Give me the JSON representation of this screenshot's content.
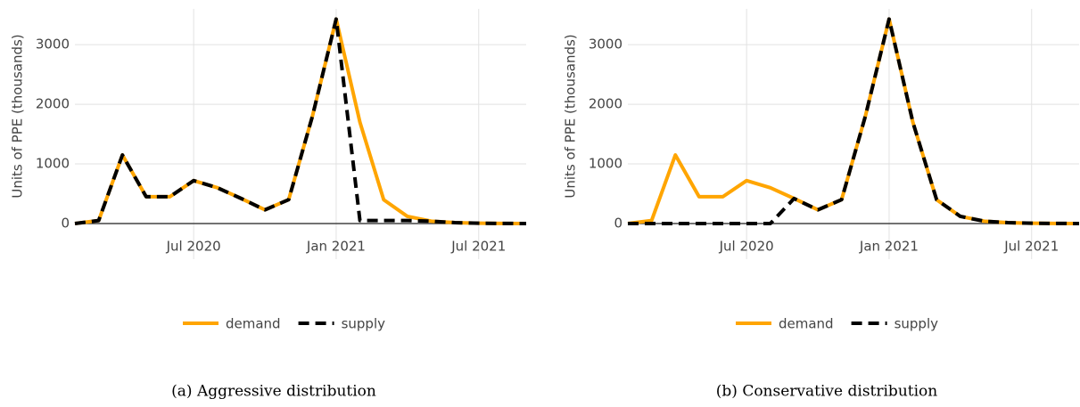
{
  "chart_data": [
    {
      "type": "line",
      "caption": "(a) Aggressive distribution",
      "ylabel": "Units of PPE (thousands)",
      "x": [
        "2020-02",
        "2020-03",
        "2020-04",
        "2020-05",
        "2020-06",
        "2020-07",
        "2020-08",
        "2020-09",
        "2020-10",
        "2020-11",
        "2020-12",
        "2021-01",
        "2021-02",
        "2021-03",
        "2021-04",
        "2021-05",
        "2021-06",
        "2021-07",
        "2021-08",
        "2021-09"
      ],
      "series": [
        {
          "name": "demand",
          "color": "#ffa500",
          "dash": false,
          "values": [
            0,
            50,
            1150,
            450,
            450,
            720,
            600,
            420,
            230,
            400,
            1800,
            3430,
            1700,
            400,
            120,
            40,
            15,
            5,
            2,
            0
          ]
        },
        {
          "name": "supply",
          "color": "#000000",
          "dash": true,
          "values": [
            0,
            50,
            1150,
            450,
            450,
            720,
            600,
            420,
            230,
            400,
            1800,
            3430,
            50,
            50,
            50,
            40,
            15,
            5,
            2,
            0
          ]
        }
      ],
      "xlim": [
        "2020-02",
        "2021-09"
      ],
      "xticks": [
        {
          "value": "2020-07",
          "label": "Jul 2020"
        },
        {
          "value": "2021-01",
          "label": "Jan 2021"
        },
        {
          "value": "2021-07",
          "label": "Jul 2021"
        }
      ],
      "ylim": [
        0,
        3600
      ],
      "yticks": [
        0,
        1000,
        2000,
        3000
      ],
      "grid": true,
      "legend": "bottom"
    },
    {
      "type": "line",
      "caption": "(b) Conservative distribution",
      "ylabel": "Units of PPE (thousands)",
      "x": [
        "2020-02",
        "2020-03",
        "2020-04",
        "2020-05",
        "2020-06",
        "2020-07",
        "2020-08",
        "2020-09",
        "2020-10",
        "2020-11",
        "2020-12",
        "2021-01",
        "2021-02",
        "2021-03",
        "2021-04",
        "2021-05",
        "2021-06",
        "2021-07",
        "2021-08",
        "2021-09"
      ],
      "series": [
        {
          "name": "demand",
          "color": "#ffa500",
          "dash": false,
          "values": [
            0,
            50,
            1150,
            450,
            450,
            720,
            600,
            420,
            230,
            400,
            1800,
            3430,
            1700,
            400,
            120,
            40,
            15,
            5,
            2,
            0
          ]
        },
        {
          "name": "supply",
          "color": "#000000",
          "dash": true,
          "values": [
            0,
            0,
            0,
            0,
            0,
            0,
            0,
            420,
            230,
            400,
            1800,
            3430,
            1700,
            400,
            120,
            40,
            15,
            5,
            2,
            0
          ]
        }
      ],
      "xlim": [
        "2020-02",
        "2021-09"
      ],
      "xticks": [
        {
          "value": "2020-07",
          "label": "Jul 2020"
        },
        {
          "value": "2021-01",
          "label": "Jan 2021"
        },
        {
          "value": "2021-07",
          "label": "Jul 2021"
        }
      ],
      "ylim": [
        0,
        3600
      ],
      "yticks": [
        0,
        1000,
        2000,
        3000
      ],
      "grid": true,
      "legend": "bottom"
    }
  ]
}
